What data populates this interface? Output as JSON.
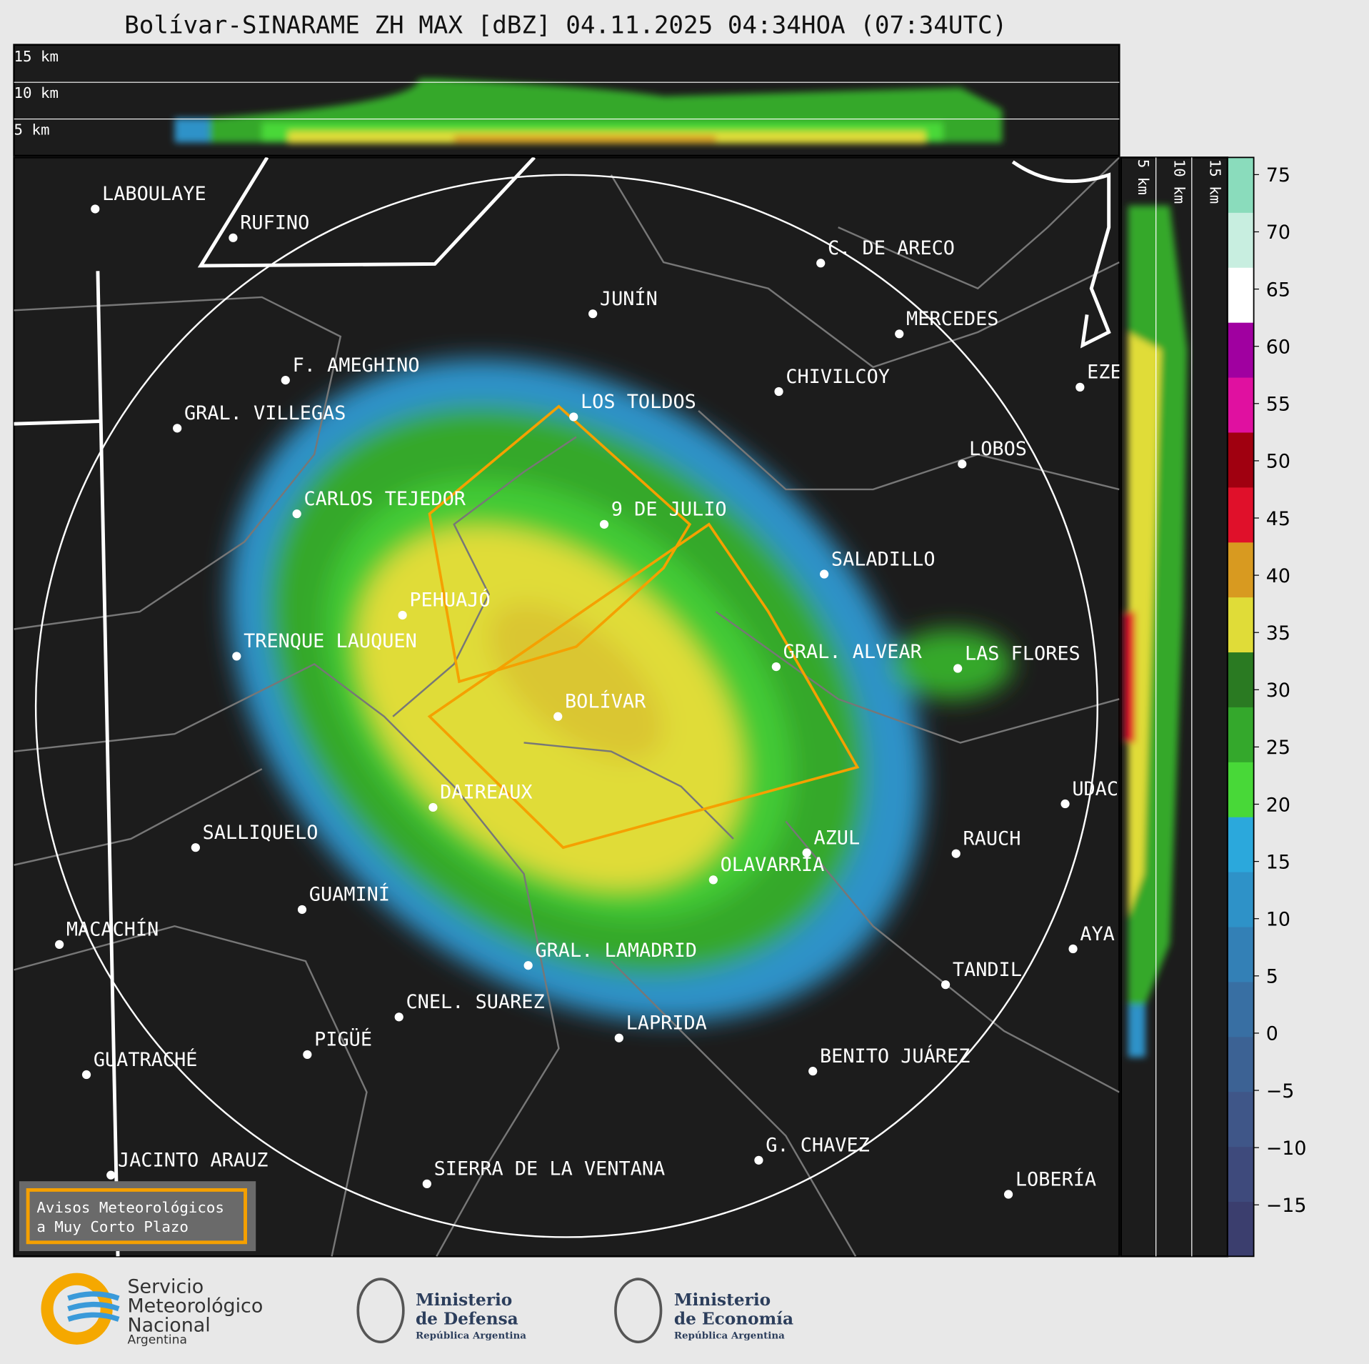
{
  "title": "Bolívar-SINARAME ZH MAX [dBZ] 04.11.2025 04:34HOA (07:34UTC)",
  "top_profile_labels": [
    "15 km",
    "10 km",
    "5 km"
  ],
  "side_profile_labels": [
    "5 km",
    "10 km",
    "15 km"
  ],
  "cities": [
    "LABOULAYE",
    "RUFINO",
    "C. DE ARECO",
    "JUNÍN",
    "MERCEDES",
    "F. AMEGHINO",
    "CHIVILCOY",
    "EZE",
    "GRAL. VILLEGAS",
    "LOS TOLDOS",
    "LOBOS",
    "CARLOS TEJEDOR",
    "9 DE JULIO",
    "SALADILLO",
    "PEHUAJÓ",
    "TRENQUE LAUQUEN",
    "GRAL. ALVEAR",
    "LAS FLORES",
    "BOLÍVAR",
    "UDAC",
    "DAIREAUX",
    "SALLIQUELO",
    "AZUL",
    "RAUCH",
    "OLAVARRÍA",
    "GUAMINÍ",
    "MACACHÍN",
    "AYA",
    "GRAL. LAMADRID",
    "TANDIL",
    "CNEL. SUAREZ",
    "LAPRIDA",
    "PIGÜÉ",
    "GUATRACHÉ",
    "BENITO JUÁREZ",
    "G. CHAVEZ",
    "JACINTO ARAUZ",
    "SIERRA DE LA VENTANA",
    "LOBERÍA"
  ],
  "colorbar": {
    "lim": [
      -19.5,
      76.5
    ],
    "ticks": [
      75,
      70,
      65,
      60,
      55,
      50,
      45,
      40,
      35,
      30,
      25,
      20,
      15,
      10,
      5,
      0,
      {
        "value": -5,
        "label": "−5"
      },
      {
        "value": -10,
        "label": "−10"
      },
      {
        "value": -15,
        "label": "−15"
      }
    ],
    "colors": [
      "#3b3e6e",
      "#3e4a7c",
      "#3f5688",
      "#3c6294",
      "#386fa3",
      "#3380b6",
      "#2e92c8",
      "#2ba8dc",
      "#48d838",
      "#34a82c",
      "#2a7a22",
      "#e0dc38",
      "#d89a20",
      "#e0102a",
      "#a00010",
      "#e010a0",
      "#a000a0",
      "#ffffff",
      "#c8eee0",
      "#8adcbc"
    ]
  },
  "warning_box": [
    "Avisos Meteorológicos",
    "a Muy Corto Plazo"
  ],
  "logos": {
    "smn": [
      "Servicio",
      "Meteorológico",
      "Nacional",
      "Argentina"
    ],
    "defensa": [
      "Ministerio",
      "de Defensa",
      "República Argentina"
    ],
    "economia": [
      "Ministerio",
      "de Economía",
      "República Argentina"
    ]
  }
}
